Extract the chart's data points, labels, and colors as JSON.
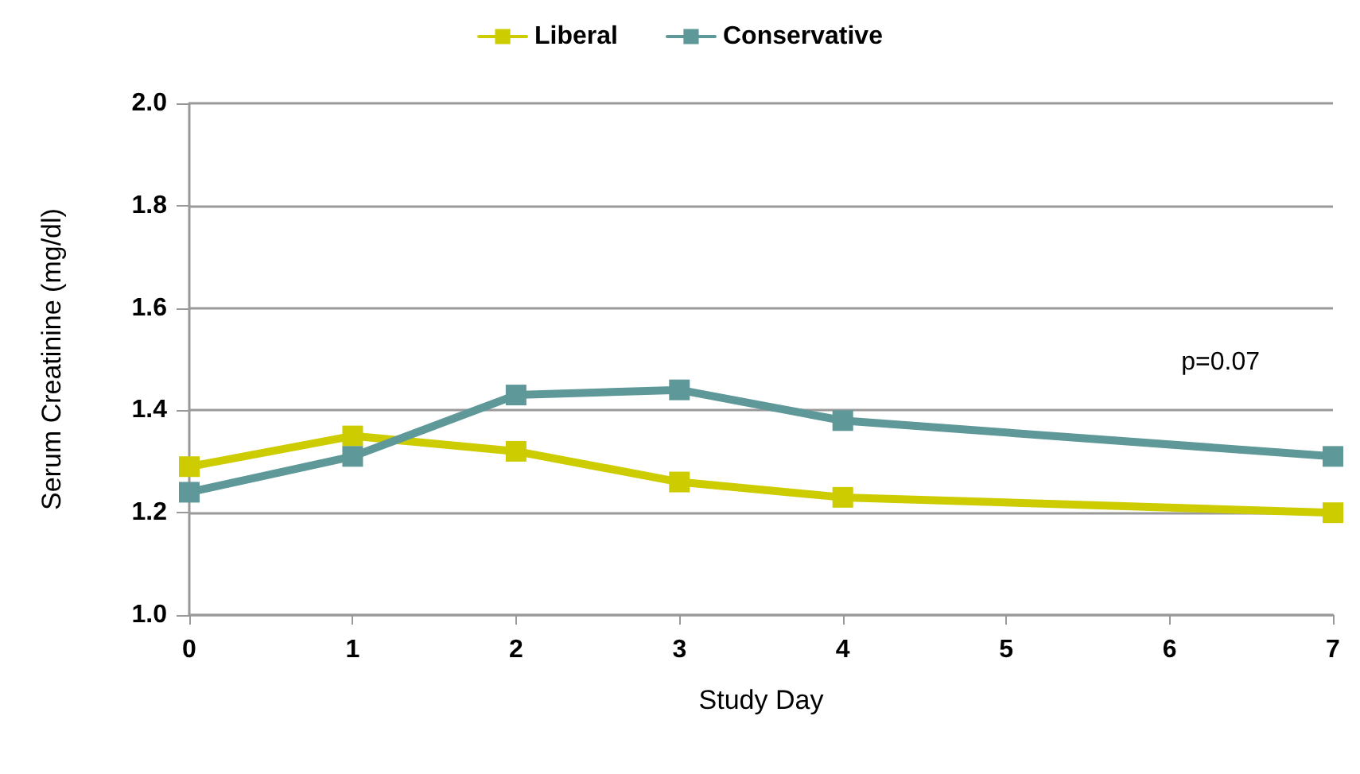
{
  "chart_data": {
    "type": "line",
    "xlabel": "Study Day",
    "ylabel": "Serum Creatinine (mg/dl)",
    "x": [
      0,
      1,
      2,
      3,
      4,
      7
    ],
    "series": [
      {
        "name": "Liberal",
        "color": "#cccc00",
        "values": [
          1.29,
          1.35,
          1.32,
          1.26,
          1.23,
          1.2
        ]
      },
      {
        "name": "Conservative",
        "color": "#5f9898",
        "values": [
          1.24,
          1.31,
          1.43,
          1.44,
          1.38,
          1.31
        ]
      }
    ],
    "xlim": [
      0,
      7
    ],
    "xticks": [
      0,
      1,
      2,
      3,
      4,
      5,
      6,
      7
    ],
    "ylim": [
      1.0,
      2.0
    ],
    "yticks": [
      {
        "value": 1,
        "label": "1.0"
      },
      1.2,
      1.4,
      1.6,
      1.8,
      {
        "value": 2,
        "label": "2.0"
      }
    ],
    "annotations": [
      "p=0.07"
    ],
    "grid": "y",
    "legend": "top",
    "marker": "square",
    "line_style": "solid"
  }
}
